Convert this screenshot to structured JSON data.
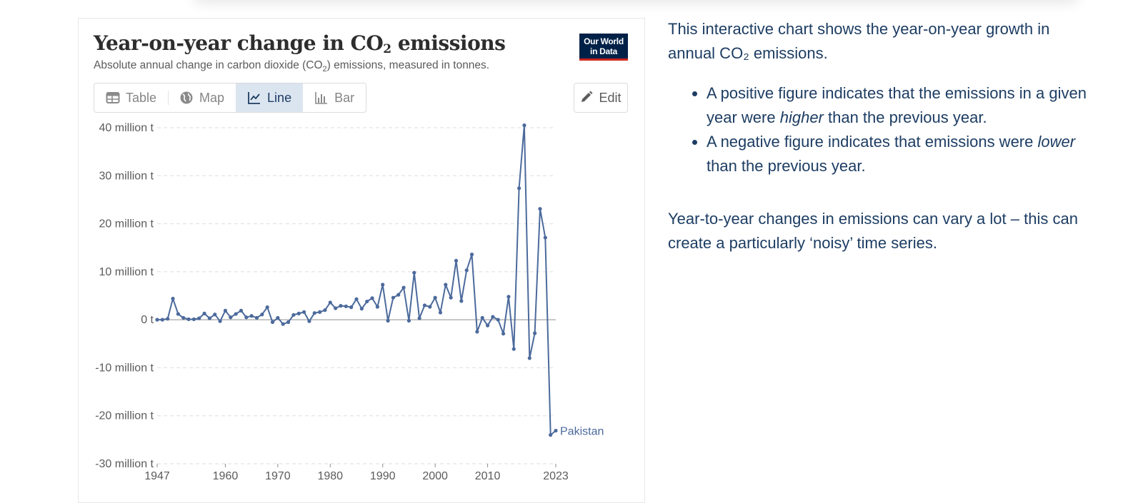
{
  "chart": {
    "title_text": "Year-on-year change in CO",
    "title_sub": "2",
    "title_tail": " emissions",
    "subtitle_pre": "Absolute annual change in carbon dioxide (CO",
    "subtitle_sub": "2",
    "subtitle_post": ") emissions, measured in tonnes.",
    "logo_line1": "Our World",
    "logo_line2": "in Data",
    "logo_color": "#002147",
    "logo_accent": "#ce261e"
  },
  "tabs": [
    {
      "label": "Table",
      "icon": "table-icon",
      "active": false
    },
    {
      "label": "Map",
      "icon": "globe-icon",
      "active": false
    },
    {
      "label": "Line",
      "icon": "line-chart-icon",
      "active": true
    },
    {
      "label": "Bar",
      "icon": "bar-chart-icon",
      "active": false
    }
  ],
  "edit": {
    "label": "Edit",
    "icon": "pencil-icon"
  },
  "description": {
    "intro_pre": "This interactive chart shows the year-on-year growth in annual CO",
    "intro_sub": "₂",
    "intro_post": " emissions.",
    "bullets": [
      {
        "pre": "A positive figure indicates that the emissions in a given year were ",
        "em": "higher",
        "post": " than the previous year."
      },
      {
        "pre": "A negative figure indicates that emissions were ",
        "em": "lower",
        "post": " than the previous year."
      }
    ],
    "note": "Year-to-year changes in emissions can vary a lot – this can create a particularly ‘noisy’ time series."
  },
  "chart_data": {
    "type": "line",
    "ylim": [
      -30000000,
      40000000
    ],
    "yticks": [
      {
        "value": 40000000,
        "label": "40 million t"
      },
      {
        "value": 30000000,
        "label": "30 million t"
      },
      {
        "value": 20000000,
        "label": "20 million t"
      },
      {
        "value": 10000000,
        "label": "10 million t"
      },
      {
        "value": 0,
        "label": "0 t"
      },
      {
        "value": -10000000,
        "label": "-10 million t"
      },
      {
        "value": -20000000,
        "label": "-20 million t"
      },
      {
        "value": -30000000,
        "label": "-30 million t"
      }
    ],
    "xlim": [
      1947,
      2023
    ],
    "xticks": [
      1947,
      1960,
      1970,
      1980,
      1990,
      2000,
      2010,
      2023
    ],
    "grid": "horizontal-dashed",
    "line_color": "#4c6a9c",
    "series": [
      {
        "name": "Pakistan",
        "x": [
          1947,
          1948,
          1949,
          1950,
          1951,
          1952,
          1953,
          1954,
          1955,
          1956,
          1957,
          1958,
          1959,
          1960,
          1961,
          1962,
          1963,
          1964,
          1965,
          1966,
          1967,
          1968,
          1969,
          1970,
          1971,
          1972,
          1973,
          1974,
          1975,
          1976,
          1977,
          1978,
          1979,
          1980,
          1981,
          1982,
          1983,
          1984,
          1985,
          1986,
          1987,
          1988,
          1989,
          1990,
          1991,
          1992,
          1993,
          1994,
          1995,
          1996,
          1997,
          1998,
          1999,
          2000,
          2001,
          2002,
          2003,
          2004,
          2005,
          2006,
          2007,
          2008,
          2009,
          2010,
          2011,
          2012,
          2013,
          2014,
          2015,
          2016,
          2017,
          2018,
          2019,
          2020,
          2021,
          2022,
          2023
        ],
        "y": [
          0,
          0,
          200000,
          4400000,
          1200000,
          400000,
          100000,
          100000,
          300000,
          1300000,
          300000,
          1100000,
          -300000,
          1900000,
          500000,
          1200000,
          1900000,
          500000,
          800000,
          400000,
          1100000,
          2600000,
          -500000,
          400000,
          -900000,
          -500000,
          1000000,
          1300000,
          1600000,
          -300000,
          1400000,
          1600000,
          2000000,
          3600000,
          2400000,
          2900000,
          2800000,
          2600000,
          4300000,
          2300000,
          3800000,
          4500000,
          2700000,
          7300000,
          -200000,
          4600000,
          5200000,
          6700000,
          -200000,
          9800000,
          300000,
          3000000,
          2700000,
          4600000,
          1500000,
          7300000,
          4600000,
          12300000,
          3900000,
          10300000,
          13600000,
          -2500000,
          400000,
          -1200000,
          600000,
          0,
          -2900000,
          4800000,
          -6100000,
          27400000,
          40500000,
          -8000000,
          -2800000,
          23100000,
          17100000,
          -24000000,
          -23100000
        ]
      }
    ]
  }
}
